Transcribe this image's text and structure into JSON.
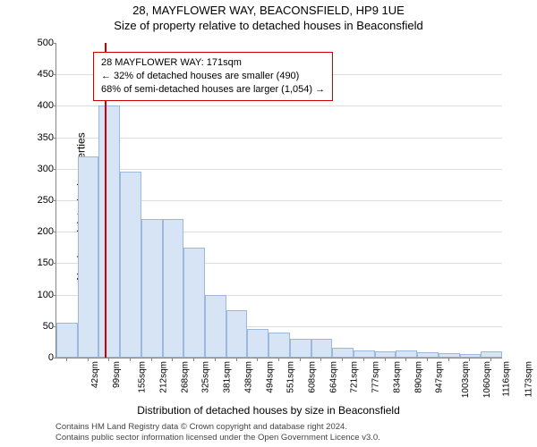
{
  "header": {
    "line1": "28, MAYFLOWER WAY, BEACONSFIELD, HP9 1UE",
    "line2": "Size of property relative to detached houses in Beaconsfield"
  },
  "axes": {
    "ylabel": "Number of detached properties",
    "xlabel": "Distribution of detached houses by size in Beaconsfield",
    "ylim": [
      0,
      500
    ],
    "yticks": [
      0,
      50,
      100,
      150,
      200,
      250,
      300,
      350,
      400,
      450,
      500
    ],
    "grid_color": "#dddddd",
    "axis_color": "#888888",
    "label_fontsize": 12,
    "tick_fontsize": 11
  },
  "chart": {
    "type": "histogram",
    "background_color": "#ffffff",
    "bar_fill": "#d6e4f5",
    "bar_border": "#9bb8de",
    "marker_color": "#cc0000",
    "marker_x": 171,
    "n_bars": 21,
    "x_start": 42,
    "x_step": 56.6,
    "values": [
      55,
      320,
      400,
      295,
      220,
      220,
      175,
      100,
      75,
      45,
      40,
      30,
      30,
      15,
      12,
      10,
      12,
      8,
      7,
      6,
      10
    ],
    "x_tick_labels": [
      "42sqm",
      "99sqm",
      "155sqm",
      "212sqm",
      "268sqm",
      "325sqm",
      "381sqm",
      "438sqm",
      "494sqm",
      "551sqm",
      "608sqm",
      "664sqm",
      "721sqm",
      "777sqm",
      "834sqm",
      "890sqm",
      "947sqm",
      "1003sqm",
      "1060sqm",
      "1116sqm",
      "1173sqm"
    ]
  },
  "info_box": {
    "border_color": "#cc0000",
    "line1": "28 MAYFLOWER WAY: 171sqm",
    "line2": "← 32% of detached houses are smaller (490)",
    "line3": "68% of semi-detached houses are larger (1,054) →"
  },
  "footer": {
    "line1": "Contains HM Land Registry data © Crown copyright and database right 2024.",
    "line2": "Contains public sector information licensed under the Open Government Licence v3.0."
  }
}
